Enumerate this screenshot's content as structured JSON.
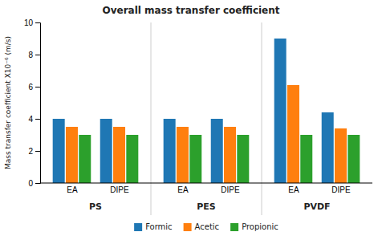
{
  "chart_data": {
    "type": "bar",
    "title": "Overall mass transfer coefficient",
    "y_label": "Mass transfer coefficient X10⁻⁶ (m/s)",
    "groups": [
      "PS",
      "PES",
      "PVDF"
    ],
    "categories": [
      "EA",
      "DIPE",
      "EA",
      "DIPE",
      "EA",
      "DIPE"
    ],
    "series": [
      {
        "name": "Formic",
        "values": [
          4.0,
          4.0,
          4.0,
          4.0,
          9.0,
          4.4
        ]
      },
      {
        "name": "Acetic",
        "values": [
          3.5,
          3.5,
          3.5,
          3.5,
          6.1,
          3.4
        ]
      },
      {
        "name": "Propionic",
        "values": [
          3.0,
          3.0,
          3.0,
          3.0,
          3.0,
          3.0
        ]
      }
    ],
    "ylim": [
      0,
      10
    ],
    "yticks": [
      0,
      2,
      4,
      6,
      8,
      10
    ],
    "grid": false,
    "legend": "bottom"
  }
}
